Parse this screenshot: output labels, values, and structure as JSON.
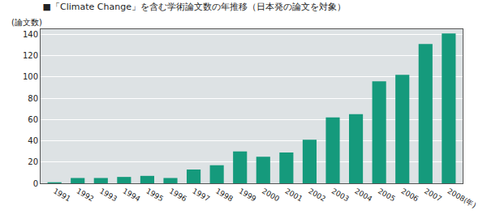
{
  "chart_data": {
    "type": "bar",
    "title": "■「Climate Change」を含む学術論文数の年推移（日本発の論文を対象）",
    "y_label": "(論文数)",
    "categories": [
      "1991",
      "1992",
      "1993",
      "1994",
      "1995",
      "1996",
      "1997",
      "1998",
      "1999",
      "2000",
      "2001",
      "2002",
      "2003",
      "2004",
      "2005",
      "2006",
      "2007",
      "2008(年)"
    ],
    "values": [
      1,
      5,
      5,
      6,
      7,
      5,
      13,
      17,
      30,
      25,
      29,
      41,
      62,
      65,
      96,
      102,
      131,
      141
    ],
    "color": "#159a7c",
    "ylim": [
      0,
      145
    ],
    "yticks": [
      0,
      20,
      40,
      60,
      80,
      100,
      120,
      140
    ],
    "grid": true
  }
}
